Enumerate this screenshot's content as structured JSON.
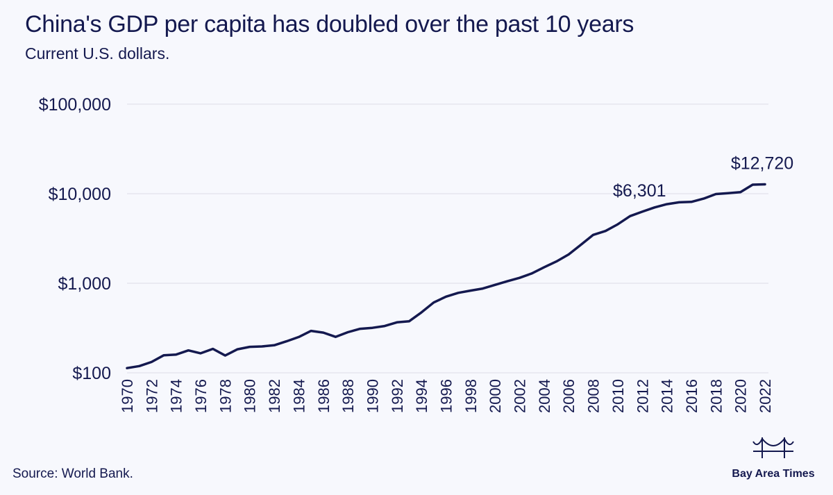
{
  "title": "China's GDP per capita has doubled over the past 10 years",
  "subtitle": "Current U.S. dollars.",
  "source": "Source: World Bank.",
  "brand": {
    "name": "Bay Area Times",
    "logo_icon": "bridge-icon"
  },
  "colors": {
    "background": "#f7f8fd",
    "line": "#14194f",
    "grid": "#dcdde6",
    "text": "#14194f"
  },
  "chart_data": {
    "type": "line",
    "title": "China's GDP per capita has doubled over the past 10 years",
    "subtitle": "Current U.S. dollars.",
    "xlabel": "",
    "ylabel": "",
    "yscale": "log",
    "ylim": [
      100,
      100000
    ],
    "yticks": [
      100,
      1000,
      10000,
      100000
    ],
    "ytick_labels": [
      "$100",
      "$1,000",
      "$10,000",
      "$100,000"
    ],
    "xlim": [
      1970,
      2022
    ],
    "xticks": [
      1970,
      1972,
      1974,
      1976,
      1978,
      1980,
      1982,
      1984,
      1986,
      1988,
      1990,
      1992,
      1994,
      1996,
      1998,
      2000,
      2002,
      2004,
      2006,
      2008,
      2010,
      2012,
      2014,
      2016,
      2018,
      2020,
      2022
    ],
    "grid": true,
    "legend": "none",
    "x": [
      1970,
      1971,
      1972,
      1973,
      1974,
      1975,
      1976,
      1977,
      1978,
      1979,
      1980,
      1981,
      1982,
      1983,
      1984,
      1985,
      1986,
      1987,
      1988,
      1989,
      1990,
      1991,
      1992,
      1993,
      1994,
      1995,
      1996,
      1997,
      1998,
      1999,
      2000,
      2001,
      2002,
      2003,
      2004,
      2005,
      2006,
      2007,
      2008,
      2009,
      2010,
      2011,
      2012,
      2013,
      2014,
      2015,
      2016,
      2017,
      2018,
      2019,
      2020,
      2021,
      2022
    ],
    "series": [
      {
        "values": [
          113,
          119,
          132,
          157,
          160,
          178,
          165,
          185,
          156,
          183,
          195,
          197,
          203,
          225,
          251,
          294,
          281,
          252,
          284,
          310,
          318,
          333,
          366,
          377,
          473,
          610,
          709,
          781,
          828,
          873,
          959,
          1053,
          1149,
          1289,
          1509,
          1753,
          2099,
          2694,
          3468,
          3832,
          4550,
          5618,
          6301,
          7020,
          7636,
          8016,
          8094,
          8817,
          9905,
          10144,
          10409,
          12618,
          12720
        ]
      }
    ],
    "annotations": [
      {
        "x": 2012,
        "y": 6301,
        "label": "$6,301"
      },
      {
        "x": 2022,
        "y": 12720,
        "label": "$12,720"
      }
    ]
  }
}
